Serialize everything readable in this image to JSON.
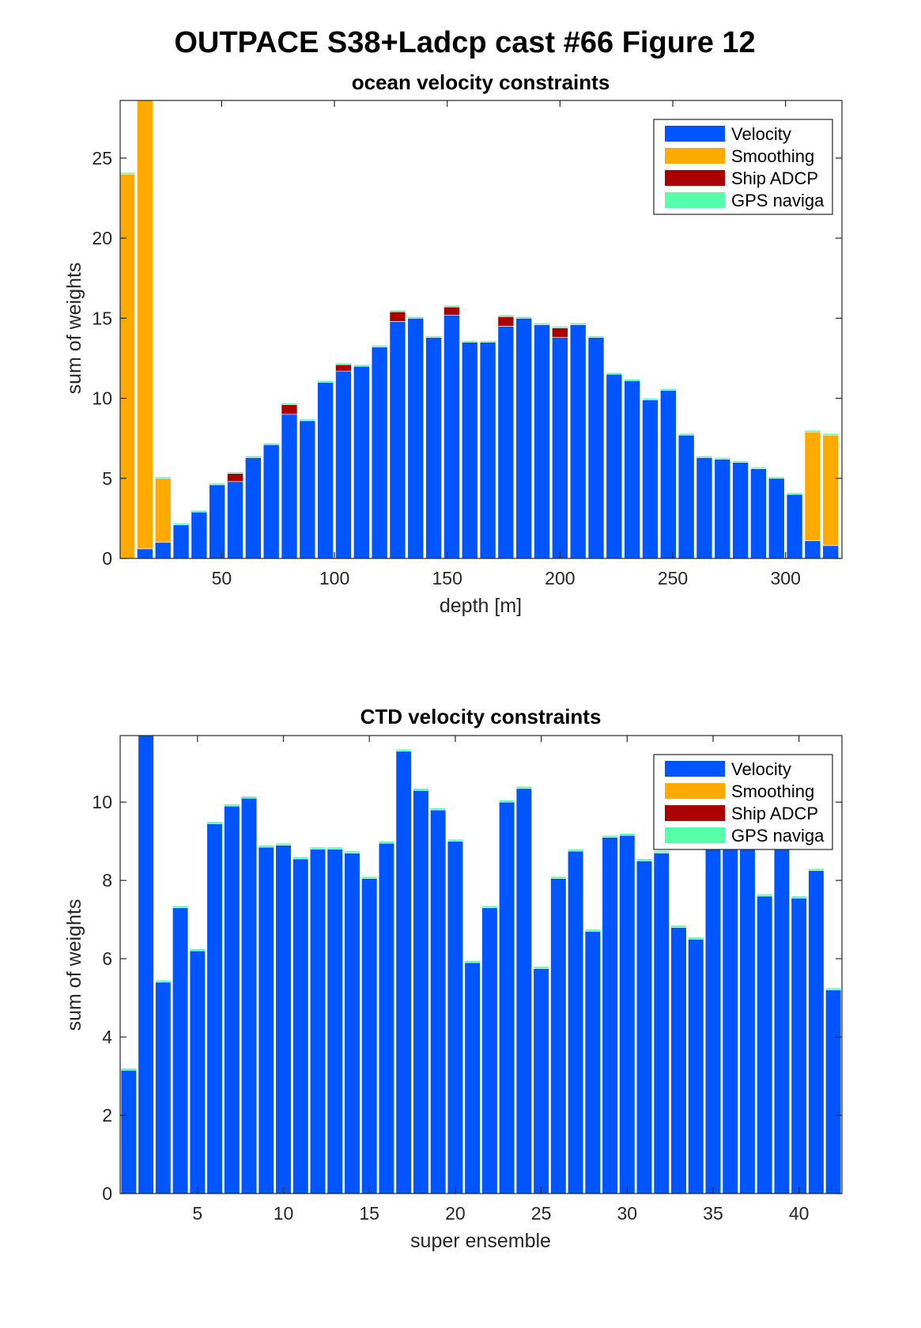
{
  "figure_title": "OUTPACE S38+Ladcp cast #66  Figure 12",
  "colors": {
    "velocity": "#0055ff",
    "smoothing": "#ffaa00",
    "ship_adcp": "#aa0000",
    "gps": "#55ffaa",
    "axis": "#262626"
  },
  "chart_data": [
    {
      "type": "bar",
      "stacked": true,
      "title": "ocean velocity constraints",
      "xlabel": "depth [m]",
      "ylabel": "sum of weights",
      "xlim": [
        5,
        325
      ],
      "ylim": [
        0,
        28.6
      ],
      "bar_width": 7,
      "xticks": [
        50,
        100,
        150,
        200,
        250,
        300
      ],
      "yticks": [
        0,
        5,
        10,
        15,
        20,
        25
      ],
      "legend_position": "top-right",
      "x": [
        8,
        16,
        24,
        32,
        40,
        48,
        56,
        64,
        72,
        80,
        88,
        96,
        104,
        112,
        120,
        128,
        136,
        144,
        152,
        160,
        168,
        176,
        184,
        192,
        200,
        208,
        216,
        224,
        232,
        240,
        248,
        256,
        264,
        272,
        280,
        288,
        296,
        304,
        312,
        320
      ],
      "series": [
        {
          "name": "Velocity",
          "color_key": "velocity",
          "values": [
            0,
            0.6,
            1.0,
            2.1,
            2.9,
            4.6,
            4.8,
            6.3,
            7.1,
            9.0,
            8.6,
            11.0,
            11.7,
            12.0,
            13.2,
            14.8,
            15.0,
            13.8,
            15.2,
            13.5,
            13.5,
            14.5,
            15.0,
            14.6,
            13.8,
            14.6,
            13.8,
            11.5,
            11.1,
            9.9,
            10.5,
            7.7,
            6.3,
            6.2,
            6.0,
            5.6,
            5.0,
            4.0,
            1.1,
            0.8
          ]
        },
        {
          "name": "Smoothing",
          "color_key": "smoothing",
          "values": [
            24.0,
            28.0,
            4.0,
            0,
            0,
            0,
            0,
            0,
            0,
            0,
            0,
            0,
            0,
            0,
            0,
            0,
            0,
            0,
            0,
            0,
            0,
            0,
            0,
            0,
            0,
            0,
            0,
            0,
            0,
            0,
            0,
            0,
            0,
            0,
            0,
            0,
            0,
            0,
            6.8,
            6.9
          ]
        },
        {
          "name": "Ship ADCP",
          "color_key": "ship_adcp",
          "values": [
            0,
            0,
            0,
            0,
            0,
            0,
            0.5,
            0,
            0,
            0.6,
            0,
            0,
            0.4,
            0,
            0,
            0.6,
            0,
            0,
            0.5,
            0,
            0,
            0.6,
            0,
            0,
            0.6,
            0,
            0,
            0,
            0,
            0,
            0,
            0,
            0,
            0,
            0,
            0,
            0,
            0,
            0,
            0
          ]
        },
        {
          "name": "GPS naviga",
          "color_key": "gps",
          "values": [
            0.1,
            0.1,
            0.1,
            0.1,
            0.1,
            0.1,
            0.1,
            0.1,
            0.1,
            0.1,
            0.1,
            0.1,
            0.1,
            0.1,
            0.1,
            0.1,
            0.1,
            0.1,
            0.1,
            0.1,
            0.1,
            0.1,
            0.1,
            0.1,
            0.1,
            0.1,
            0.1,
            0.1,
            0.1,
            0.1,
            0.1,
            0.1,
            0.1,
            0.1,
            0.1,
            0.1,
            0.1,
            0.1,
            0.1,
            0.1
          ]
        }
      ]
    },
    {
      "type": "bar",
      "stacked": true,
      "title": "CTD velocity constraints",
      "xlabel": "super ensemble",
      "ylabel": "sum of weights",
      "xlim": [
        0.5,
        42.5
      ],
      "ylim": [
        0,
        11.7
      ],
      "bar_width": 0.9,
      "xticks": [
        5,
        10,
        15,
        20,
        25,
        30,
        35,
        40
      ],
      "yticks": [
        0,
        2,
        4,
        6,
        8,
        10
      ],
      "legend_position": "top-right",
      "x": [
        1,
        2,
        3,
        4,
        5,
        6,
        7,
        8,
        9,
        10,
        11,
        12,
        13,
        14,
        15,
        16,
        17,
        18,
        19,
        20,
        21,
        22,
        23,
        24,
        25,
        26,
        27,
        28,
        29,
        30,
        31,
        32,
        33,
        34,
        35,
        36,
        37,
        38,
        39,
        40,
        41,
        42
      ],
      "series": [
        {
          "name": "Velocity",
          "color_key": "velocity",
          "values": [
            3.15,
            11.7,
            5.4,
            7.3,
            6.2,
            9.45,
            9.9,
            10.1,
            8.85,
            8.9,
            8.55,
            8.8,
            8.8,
            8.7,
            8.05,
            8.95,
            11.3,
            10.3,
            9.8,
            9.0,
            5.9,
            7.3,
            10.0,
            10.35,
            5.75,
            8.05,
            8.75,
            6.7,
            9.1,
            9.15,
            8.5,
            8.7,
            6.8,
            6.5,
            9.0,
            9.0,
            9.0,
            7.6,
            9.0,
            7.55,
            8.25,
            5.2
          ]
        },
        {
          "name": "Smoothing",
          "color_key": "smoothing",
          "values": [
            0,
            0,
            0,
            0,
            0,
            0,
            0,
            0,
            0,
            0,
            0,
            0,
            0,
            0,
            0,
            0,
            0,
            0,
            0,
            0,
            0,
            0,
            0,
            0,
            0,
            0,
            0,
            0,
            0,
            0,
            0,
            0,
            0,
            0,
            0,
            0,
            0,
            0,
            0,
            0,
            0,
            0
          ]
        },
        {
          "name": "Ship ADCP",
          "color_key": "ship_adcp",
          "values": [
            0,
            0,
            0,
            0,
            0,
            0,
            0,
            0,
            0,
            0,
            0,
            0,
            0,
            0,
            0,
            0,
            0,
            0,
            0,
            0,
            0,
            0,
            0,
            0,
            0,
            0,
            0,
            0,
            0,
            0,
            0,
            0,
            0,
            0,
            0,
            0,
            0,
            0,
            0,
            0,
            0,
            0
          ]
        },
        {
          "name": "GPS naviga",
          "color_key": "gps",
          "values": [
            0.05,
            0.05,
            0.05,
            0.05,
            0.05,
            0.05,
            0.05,
            0.05,
            0.05,
            0.05,
            0.05,
            0.05,
            0.05,
            0.05,
            0.05,
            0.05,
            0.05,
            0.05,
            0.05,
            0.05,
            0.05,
            0.05,
            0.05,
            0.05,
            0.05,
            0.05,
            0.05,
            0.05,
            0.05,
            0.05,
            0.05,
            0.05,
            0.05,
            0.05,
            0.05,
            0.05,
            0.05,
            0.05,
            0.05,
            0.05,
            0.05,
            0.05
          ]
        }
      ]
    }
  ]
}
